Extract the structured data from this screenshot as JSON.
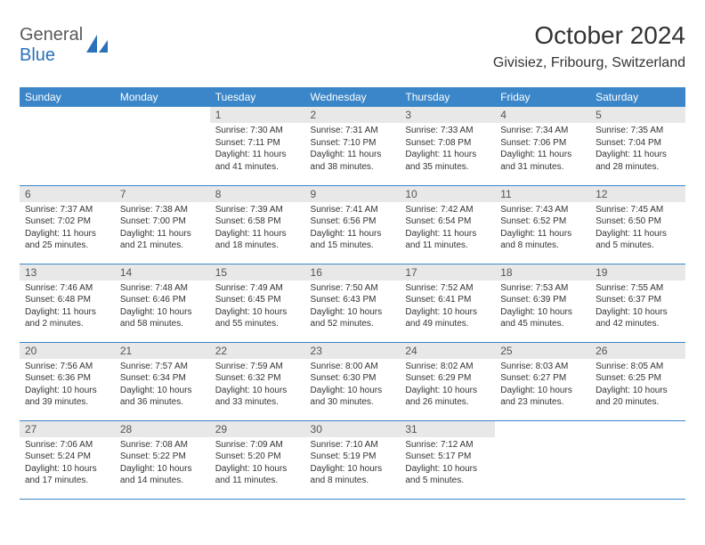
{
  "logo": {
    "part1": "General",
    "part2": "Blue"
  },
  "title": "October 2024",
  "location": "Givisiez, Fribourg, Switzerland",
  "colors": {
    "header_bg": "#3a86c8",
    "header_text": "#ffffff",
    "daynum_bg": "#e8e8e8",
    "daynum_text": "#555555",
    "body_text": "#333333",
    "logo_gray": "#5a5a5a",
    "logo_blue": "#2a71b8",
    "row_border": "#3a86c8"
  },
  "typography": {
    "title_fontsize": 28,
    "location_fontsize": 16,
    "header_fontsize": 12,
    "daynum_fontsize": 12,
    "cell_fontsize": 10
  },
  "day_headers": [
    "Sunday",
    "Monday",
    "Tuesday",
    "Wednesday",
    "Thursday",
    "Friday",
    "Saturday"
  ],
  "weeks": [
    [
      null,
      null,
      {
        "n": "1",
        "sr": "7:30 AM",
        "ss": "7:11 PM",
        "dl": "11 hours and 41 minutes."
      },
      {
        "n": "2",
        "sr": "7:31 AM",
        "ss": "7:10 PM",
        "dl": "11 hours and 38 minutes."
      },
      {
        "n": "3",
        "sr": "7:33 AM",
        "ss": "7:08 PM",
        "dl": "11 hours and 35 minutes."
      },
      {
        "n": "4",
        "sr": "7:34 AM",
        "ss": "7:06 PM",
        "dl": "11 hours and 31 minutes."
      },
      {
        "n": "5",
        "sr": "7:35 AM",
        "ss": "7:04 PM",
        "dl": "11 hours and 28 minutes."
      }
    ],
    [
      {
        "n": "6",
        "sr": "7:37 AM",
        "ss": "7:02 PM",
        "dl": "11 hours and 25 minutes."
      },
      {
        "n": "7",
        "sr": "7:38 AM",
        "ss": "7:00 PM",
        "dl": "11 hours and 21 minutes."
      },
      {
        "n": "8",
        "sr": "7:39 AM",
        "ss": "6:58 PM",
        "dl": "11 hours and 18 minutes."
      },
      {
        "n": "9",
        "sr": "7:41 AM",
        "ss": "6:56 PM",
        "dl": "11 hours and 15 minutes."
      },
      {
        "n": "10",
        "sr": "7:42 AM",
        "ss": "6:54 PM",
        "dl": "11 hours and 11 minutes."
      },
      {
        "n": "11",
        "sr": "7:43 AM",
        "ss": "6:52 PM",
        "dl": "11 hours and 8 minutes."
      },
      {
        "n": "12",
        "sr": "7:45 AM",
        "ss": "6:50 PM",
        "dl": "11 hours and 5 minutes."
      }
    ],
    [
      {
        "n": "13",
        "sr": "7:46 AM",
        "ss": "6:48 PM",
        "dl": "11 hours and 2 minutes."
      },
      {
        "n": "14",
        "sr": "7:48 AM",
        "ss": "6:46 PM",
        "dl": "10 hours and 58 minutes."
      },
      {
        "n": "15",
        "sr": "7:49 AM",
        "ss": "6:45 PM",
        "dl": "10 hours and 55 minutes."
      },
      {
        "n": "16",
        "sr": "7:50 AM",
        "ss": "6:43 PM",
        "dl": "10 hours and 52 minutes."
      },
      {
        "n": "17",
        "sr": "7:52 AM",
        "ss": "6:41 PM",
        "dl": "10 hours and 49 minutes."
      },
      {
        "n": "18",
        "sr": "7:53 AM",
        "ss": "6:39 PM",
        "dl": "10 hours and 45 minutes."
      },
      {
        "n": "19",
        "sr": "7:55 AM",
        "ss": "6:37 PM",
        "dl": "10 hours and 42 minutes."
      }
    ],
    [
      {
        "n": "20",
        "sr": "7:56 AM",
        "ss": "6:36 PM",
        "dl": "10 hours and 39 minutes."
      },
      {
        "n": "21",
        "sr": "7:57 AM",
        "ss": "6:34 PM",
        "dl": "10 hours and 36 minutes."
      },
      {
        "n": "22",
        "sr": "7:59 AM",
        "ss": "6:32 PM",
        "dl": "10 hours and 33 minutes."
      },
      {
        "n": "23",
        "sr": "8:00 AM",
        "ss": "6:30 PM",
        "dl": "10 hours and 30 minutes."
      },
      {
        "n": "24",
        "sr": "8:02 AM",
        "ss": "6:29 PM",
        "dl": "10 hours and 26 minutes."
      },
      {
        "n": "25",
        "sr": "8:03 AM",
        "ss": "6:27 PM",
        "dl": "10 hours and 23 minutes."
      },
      {
        "n": "26",
        "sr": "8:05 AM",
        "ss": "6:25 PM",
        "dl": "10 hours and 20 minutes."
      }
    ],
    [
      {
        "n": "27",
        "sr": "7:06 AM",
        "ss": "5:24 PM",
        "dl": "10 hours and 17 minutes."
      },
      {
        "n": "28",
        "sr": "7:08 AM",
        "ss": "5:22 PM",
        "dl": "10 hours and 14 minutes."
      },
      {
        "n": "29",
        "sr": "7:09 AM",
        "ss": "5:20 PM",
        "dl": "10 hours and 11 minutes."
      },
      {
        "n": "30",
        "sr": "7:10 AM",
        "ss": "5:19 PM",
        "dl": "10 hours and 8 minutes."
      },
      {
        "n": "31",
        "sr": "7:12 AM",
        "ss": "5:17 PM",
        "dl": "10 hours and 5 minutes."
      },
      null,
      null
    ]
  ],
  "labels": {
    "sunrise": "Sunrise:",
    "sunset": "Sunset:",
    "daylight": "Daylight:"
  }
}
